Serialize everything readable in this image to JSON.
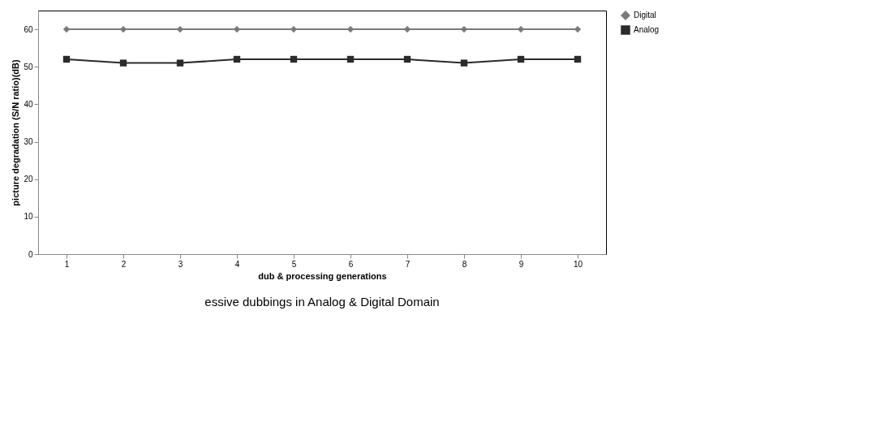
{
  "chart_data": {
    "type": "line",
    "xlabel": "dub & processing generations",
    "ylabel": "picture degradation (S/N ratio)(dB)",
    "categories": [
      "1",
      "2",
      "3",
      "4",
      "5",
      "6",
      "7",
      "8",
      "9",
      "10"
    ],
    "series": [
      {
        "name": "Digital",
        "color": "#7a7a7a",
        "marker": "diamond",
        "values": [
          60,
          60,
          60,
          60,
          60,
          60,
          60,
          60,
          60,
          60
        ]
      },
      {
        "name": "Analog",
        "color": "#2b2b2b",
        "marker": "square",
        "values": [
          52,
          51,
          51,
          52,
          52,
          52,
          52,
          51,
          52,
          52
        ]
      }
    ],
    "ylim": [
      0,
      65
    ],
    "yticks": [
      0,
      10,
      20,
      30,
      40,
      50,
      60
    ],
    "grid": false,
    "legend": "right",
    "annotations": [
      "essive dubbings in Analog & Digital Domain"
    ]
  }
}
